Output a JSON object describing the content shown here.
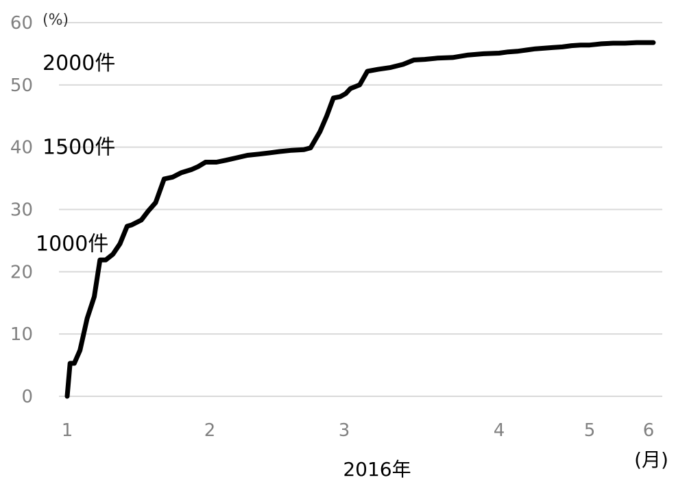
{
  "chart_data": {
    "type": "line",
    "title": "",
    "xlabel": "2016年",
    "x_unit": "(月)",
    "ylabel": "",
    "y_unit": "(%)",
    "xlim": [
      1,
      6
    ],
    "ylim": [
      0,
      60
    ],
    "y_ticks": [
      "0",
      "10",
      "20",
      "30",
      "40",
      "50",
      "60"
    ],
    "x_ticks": [
      {
        "value": 1,
        "label": "1"
      },
      {
        "value": 2,
        "label": "2"
      },
      {
        "value": 3,
        "label": "3"
      },
      {
        "value": 4,
        "label": "4"
      },
      {
        "value": 5,
        "label": "5"
      },
      {
        "value": 6,
        "label": "6"
      }
    ],
    "grid": true,
    "legend": "none",
    "line_color": "#000000",
    "annotations": [
      {
        "text": "2000件",
        "y": 53.5
      },
      {
        "text": "1500件",
        "y": 40
      },
      {
        "text": "1000件",
        "y": 24.5
      }
    ],
    "series": [
      {
        "points": [
          [
            1.0,
            0.0
          ],
          [
            1.02,
            5.3
          ],
          [
            1.05,
            5.3
          ],
          [
            1.09,
            7.4
          ],
          [
            1.14,
            12.5
          ],
          [
            1.19,
            16.0
          ],
          [
            1.23,
            21.9
          ],
          [
            1.27,
            21.9
          ],
          [
            1.32,
            22.8
          ],
          [
            1.37,
            24.5
          ],
          [
            1.42,
            27.3
          ],
          [
            1.45,
            27.5
          ],
          [
            1.52,
            28.3
          ],
          [
            1.57,
            29.8
          ],
          [
            1.62,
            31.1
          ],
          [
            1.68,
            34.9
          ],
          [
            1.74,
            35.2
          ],
          [
            1.8,
            35.9
          ],
          [
            1.87,
            36.4
          ],
          [
            1.92,
            36.9
          ],
          [
            1.97,
            37.6
          ],
          [
            2.05,
            37.6
          ],
          [
            2.12,
            37.9
          ],
          [
            2.2,
            38.3
          ],
          [
            2.28,
            38.7
          ],
          [
            2.37,
            38.9
          ],
          [
            2.45,
            39.1
          ],
          [
            2.52,
            39.3
          ],
          [
            2.61,
            39.5
          ],
          [
            2.7,
            39.6
          ],
          [
            2.75,
            39.9
          ],
          [
            2.82,
            42.5
          ],
          [
            2.87,
            45.0
          ],
          [
            2.92,
            47.9
          ],
          [
            2.97,
            48.1
          ],
          [
            3.01,
            48.6
          ],
          [
            3.04,
            49.4
          ],
          [
            3.1,
            50.0
          ],
          [
            3.15,
            52.2
          ],
          [
            3.22,
            52.5
          ],
          [
            3.3,
            52.8
          ],
          [
            3.38,
            53.3
          ],
          [
            3.45,
            54.0
          ],
          [
            3.52,
            54.1
          ],
          [
            3.6,
            54.3
          ],
          [
            3.7,
            54.4
          ],
          [
            3.8,
            54.8
          ],
          [
            3.9,
            55.0
          ],
          [
            4.0,
            55.1
          ],
          [
            4.1,
            55.3
          ],
          [
            4.2,
            55.4
          ],
          [
            4.3,
            55.6
          ],
          [
            4.4,
            55.8
          ],
          [
            4.5,
            55.9
          ],
          [
            4.6,
            56.0
          ],
          [
            4.7,
            56.1
          ],
          [
            4.8,
            56.3
          ],
          [
            4.9,
            56.4
          ],
          [
            5.0,
            56.4
          ],
          [
            5.1,
            56.5
          ],
          [
            5.2,
            56.6
          ],
          [
            5.4,
            56.7
          ],
          [
            5.6,
            56.7
          ],
          [
            5.8,
            56.8
          ],
          [
            6.0,
            56.8
          ],
          [
            6.08,
            56.8
          ]
        ]
      }
    ]
  }
}
